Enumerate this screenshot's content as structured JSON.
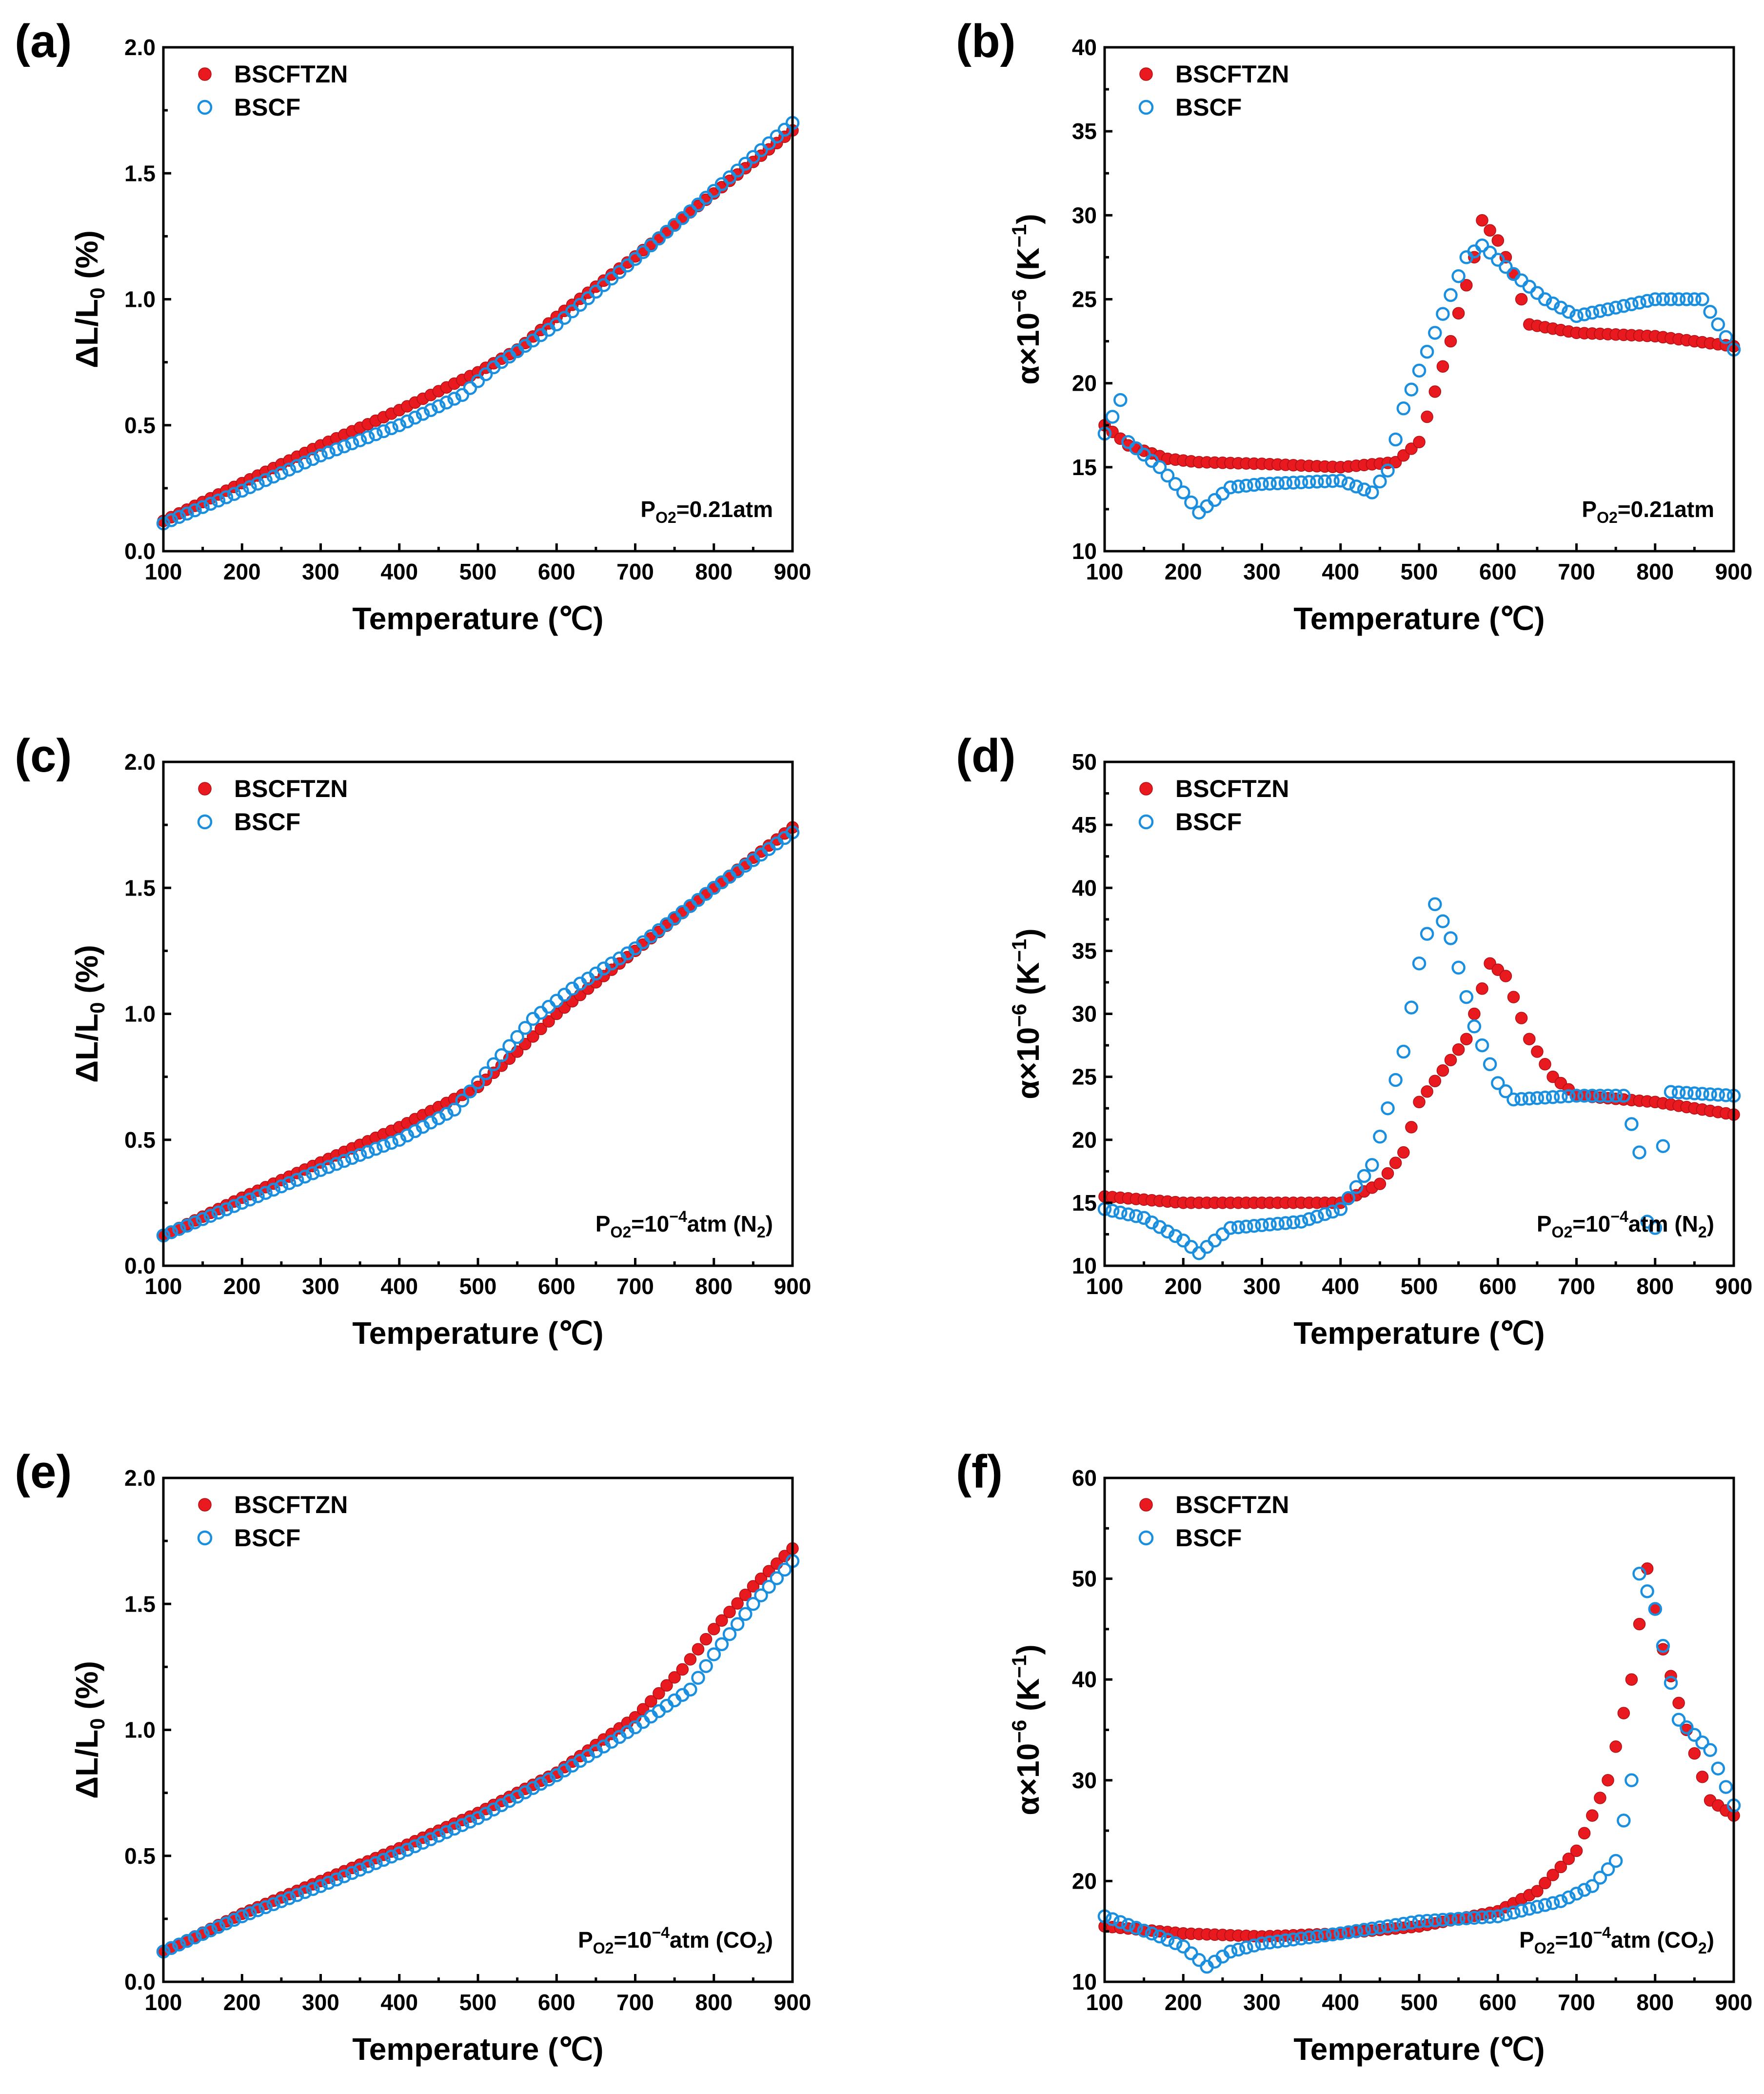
{
  "colors": {
    "bscftzn": "#e8191f",
    "bscf": "#1a8fe0",
    "axis": "#000000"
  },
  "chart_data": [
    {
      "type": "scatter",
      "panel": "(a)",
      "xlabel": "Temperature (℃)",
      "ylabel": "ΔL/L0 (%)",
      "ylabel_parts": {
        "main": "ΔL/L",
        "sub": "0",
        "tail": " (%)"
      },
      "xlim": [
        100,
        900
      ],
      "ylim": [
        0.0,
        2.0
      ],
      "xticks": [
        "100",
        "200",
        "300",
        "400",
        "500",
        "600",
        "700",
        "800",
        "900"
      ],
      "yticks": [
        "0.0",
        "0.5",
        "1.0",
        "1.5",
        "2.0"
      ],
      "legend": [
        "BSCFTZN",
        "BSCF"
      ],
      "annotation": {
        "pre": "P",
        "sub": "O2",
        "post": "=0.21atm",
        "tail_sub": "",
        "tail": ""
      },
      "series": [
        {
          "name": "BSCFTZN",
          "style": "filled",
          "x_start": 100,
          "x_step": 10,
          "x_end": 900,
          "curve": [
            [
              100,
              0.12
            ],
            [
              200,
              0.27
            ],
            [
              300,
              0.42
            ],
            [
              400,
              0.56
            ],
            [
              500,
              0.71
            ],
            [
              550,
              0.8
            ],
            [
              600,
              0.93
            ],
            [
              700,
              1.17
            ],
            [
              800,
              1.42
            ],
            [
              900,
              1.67
            ]
          ]
        },
        {
          "name": "BSCF",
          "style": "open",
          "x_start": 100,
          "x_step": 10,
          "x_end": 900,
          "curve": [
            [
              100,
              0.11
            ],
            [
              200,
              0.24
            ],
            [
              300,
              0.38
            ],
            [
              400,
              0.5
            ],
            [
              480,
              0.62
            ],
            [
              520,
              0.73
            ],
            [
              600,
              0.9
            ],
            [
              700,
              1.16
            ],
            [
              800,
              1.43
            ],
            [
              900,
              1.7
            ]
          ]
        }
      ]
    },
    {
      "type": "scatter",
      "panel": "(b)",
      "xlabel": "Temperature (℃)",
      "ylabel": "α×10−6 (K−1)",
      "ylabel_parts": {
        "main": "α×10",
        "sup": "−6",
        "mid": " (K",
        "sup2": "−1",
        "tail": ")"
      },
      "xlim": [
        100,
        900
      ],
      "ylim": [
        10,
        40
      ],
      "xticks": [
        "100",
        "200",
        "300",
        "400",
        "500",
        "600",
        "700",
        "800",
        "900"
      ],
      "yticks": [
        "10",
        "15",
        "20",
        "25",
        "30",
        "35",
        "40"
      ],
      "legend": [
        "BSCFTZN",
        "BSCF"
      ],
      "annotation": {
        "pre": "P",
        "sub": "O2",
        "post": "=0.21atm",
        "tail_sub": "",
        "tail": ""
      },
      "series": [
        {
          "name": "BSCFTZN",
          "style": "filled",
          "x_start": 100,
          "x_step": 10,
          "x_end": 900,
          "curve": [
            [
              100,
              17.5
            ],
            [
              130,
              16.3
            ],
            [
              180,
              15.5
            ],
            [
              220,
              15.3
            ],
            [
              300,
              15.2
            ],
            [
              400,
              15.0
            ],
            [
              470,
              15.3
            ],
            [
              500,
              16.5
            ],
            [
              540,
              22.5
            ],
            [
              570,
              27.5
            ],
            [
              580,
              29.7
            ],
            [
              600,
              28.5
            ],
            [
              620,
              26.5
            ],
            [
              640,
              23.5
            ],
            [
              700,
              23.0
            ],
            [
              800,
              22.8
            ],
            [
              900,
              22.2
            ]
          ]
        },
        {
          "name": "BSCF",
          "style": "open",
          "x_start": 100,
          "x_step": 10,
          "x_end": 900,
          "curve": [
            [
              100,
              17.0
            ],
            [
              120,
              19.0
            ],
            [
              130,
              16.5
            ],
            [
              170,
              15.0
            ],
            [
              200,
              13.5
            ],
            [
              220,
              12.3
            ],
            [
              260,
              13.8
            ],
            [
              300,
              14.0
            ],
            [
              400,
              14.2
            ],
            [
              440,
              13.5
            ],
            [
              460,
              14.8
            ],
            [
              480,
              18.5
            ],
            [
              520,
              23.0
            ],
            [
              560,
              27.5
            ],
            [
              580,
              28.2
            ],
            [
              620,
              26.5
            ],
            [
              660,
              25.0
            ],
            [
              700,
              24.0
            ],
            [
              800,
              25.0
            ],
            [
              860,
              25.0
            ],
            [
              900,
              22.0
            ]
          ]
        }
      ]
    },
    {
      "type": "scatter",
      "panel": "(c)",
      "xlabel": "Temperature (℃)",
      "ylabel": "ΔL/L0 (%)",
      "ylabel_parts": {
        "main": "ΔL/L",
        "sub": "0",
        "tail": " (%)"
      },
      "xlim": [
        100,
        900
      ],
      "ylim": [
        0.0,
        2.0
      ],
      "xticks": [
        "100",
        "200",
        "300",
        "400",
        "500",
        "600",
        "700",
        "800",
        "900"
      ],
      "yticks": [
        "0.0",
        "0.5",
        "1.0",
        "1.5",
        "2.0"
      ],
      "legend": [
        "BSCFTZN",
        "BSCF"
      ],
      "annotation": {
        "pre": "P",
        "sub": "O2",
        "post": "=10",
        "post_sup": "−4",
        "tail_text": "atm (N",
        "tail_sub": "2",
        "tail": ")"
      },
      "series": [
        {
          "name": "BSCFTZN",
          "style": "filled",
          "x_start": 100,
          "x_step": 10,
          "x_end": 900,
          "curve": [
            [
              100,
              0.12
            ],
            [
              200,
              0.27
            ],
            [
              300,
              0.41
            ],
            [
              400,
              0.55
            ],
            [
              500,
              0.71
            ],
            [
              550,
              0.85
            ],
            [
              600,
              1.0
            ],
            [
              700,
              1.25
            ],
            [
              800,
              1.5
            ],
            [
              900,
              1.74
            ]
          ]
        },
        {
          "name": "BSCF",
          "style": "open",
          "x_start": 100,
          "x_step": 10,
          "x_end": 900,
          "curve": [
            [
              100,
              0.12
            ],
            [
              200,
              0.25
            ],
            [
              300,
              0.38
            ],
            [
              400,
              0.5
            ],
            [
              470,
              0.62
            ],
            [
              520,
              0.8
            ],
            [
              570,
              0.98
            ],
            [
              620,
              1.1
            ],
            [
              700,
              1.26
            ],
            [
              800,
              1.5
            ],
            [
              900,
              1.72
            ]
          ]
        }
      ]
    },
    {
      "type": "scatter",
      "panel": "(d)",
      "xlabel": "Temperature (℃)",
      "ylabel": "α×10−6 (K−1)",
      "ylabel_parts": {
        "main": "α×10",
        "sup": "−6",
        "mid": " (K",
        "sup2": "−1",
        "tail": ")"
      },
      "xlim": [
        100,
        900
      ],
      "ylim": [
        10,
        50
      ],
      "xticks": [
        "100",
        "200",
        "300",
        "400",
        "500",
        "600",
        "700",
        "800",
        "900"
      ],
      "yticks": [
        "10",
        "15",
        "20",
        "25",
        "30",
        "35",
        "40",
        "45",
        "50"
      ],
      "legend": [
        "BSCFTZN",
        "BSCF"
      ],
      "annotation": {
        "pre": "P",
        "sub": "O2",
        "post": "=10",
        "post_sup": "−4",
        "tail_text": "atm (N",
        "tail_sub": "2",
        "tail": ")"
      },
      "series": [
        {
          "name": "BSCFTZN",
          "style": "filled",
          "x_start": 100,
          "x_step": 10,
          "x_end": 900,
          "curve": [
            [
              100,
              15.5
            ],
            [
              200,
              15.0
            ],
            [
              300,
              15.0
            ],
            [
              400,
              15.0
            ],
            [
              450,
              16.5
            ],
            [
              480,
              19.0
            ],
            [
              500,
              23.0
            ],
            [
              530,
              25.5
            ],
            [
              560,
              28.0
            ],
            [
              590,
              34.0
            ],
            [
              610,
              33.0
            ],
            [
              640,
              28.0
            ],
            [
              670,
              25.0
            ],
            [
              700,
              23.5
            ],
            [
              800,
              23.0
            ],
            [
              900,
              22.0
            ]
          ]
        },
        {
          "name": "BSCF",
          "style": "open",
          "x_start": 100,
          "x_step": 10,
          "x_end": 900,
          "curve": [
            [
              100,
              14.5
            ],
            [
              150,
              13.8
            ],
            [
              200,
              12.0
            ],
            [
              220,
              11.0
            ],
            [
              260,
              13.0
            ],
            [
              350,
              13.5
            ],
            [
              400,
              14.5
            ],
            [
              440,
              18.0
            ],
            [
              480,
              27.0
            ],
            [
              500,
              34.0
            ],
            [
              520,
              38.7
            ],
            [
              540,
              36.0
            ],
            [
              570,
              29.0
            ],
            [
              600,
              24.5
            ],
            [
              620,
              23.2
            ],
            [
              700,
              23.5
            ],
            [
              760,
              23.5
            ],
            [
              780,
              19.0
            ],
            [
              790,
              13.5
            ],
            [
              800,
              13.0
            ],
            [
              810,
              19.5
            ],
            [
              820,
              23.8
            ],
            [
              900,
              23.5
            ]
          ]
        }
      ]
    },
    {
      "type": "scatter",
      "panel": "(e)",
      "xlabel": "Temperature (℃)",
      "ylabel": "ΔL/L0 (%)",
      "ylabel_parts": {
        "main": "ΔL/L",
        "sub": "0",
        "tail": " (%)"
      },
      "xlim": [
        100,
        900
      ],
      "ylim": [
        0.0,
        2.0
      ],
      "xticks": [
        "100",
        "200",
        "300",
        "400",
        "500",
        "600",
        "700",
        "800",
        "900"
      ],
      "yticks": [
        "0.0",
        "0.5",
        "1.0",
        "1.5",
        "2.0"
      ],
      "legend": [
        "BSCFTZN",
        "BSCF"
      ],
      "annotation": {
        "pre": "P",
        "sub": "O2",
        "post": "=10",
        "post_sup": "−4",
        "tail_text": "atm (CO",
        "tail_sub": "2",
        "tail": ")"
      },
      "series": [
        {
          "name": "BSCFTZN",
          "style": "filled",
          "x_start": 100,
          "x_step": 10,
          "x_end": 900,
          "curve": [
            [
              100,
              0.12
            ],
            [
              200,
              0.27
            ],
            [
              300,
              0.4
            ],
            [
              400,
              0.53
            ],
            [
              500,
              0.67
            ],
            [
              600,
              0.83
            ],
            [
              700,
              1.05
            ],
            [
              760,
              1.24
            ],
            [
              800,
              1.4
            ],
            [
              850,
              1.57
            ],
            [
              900,
              1.72
            ]
          ]
        },
        {
          "name": "BSCF",
          "style": "open",
          "x_start": 100,
          "x_step": 10,
          "x_end": 900,
          "curve": [
            [
              100,
              0.12
            ],
            [
              200,
              0.26
            ],
            [
              300,
              0.38
            ],
            [
              400,
              0.51
            ],
            [
              500,
              0.65
            ],
            [
              600,
              0.82
            ],
            [
              700,
              1.01
            ],
            [
              770,
              1.16
            ],
            [
              800,
              1.3
            ],
            [
              850,
              1.5
            ],
            [
              900,
              1.67
            ]
          ]
        }
      ]
    },
    {
      "type": "scatter",
      "panel": "(f)",
      "xlabel": "Temperature (℃)",
      "ylabel": "α×10−6 (K−1)",
      "ylabel_parts": {
        "main": "α×10",
        "sup": "−6",
        "mid": " (K",
        "sup2": "−1",
        "tail": ")"
      },
      "xlim": [
        100,
        900
      ],
      "ylim": [
        10,
        60
      ],
      "xticks": [
        "100",
        "200",
        "300",
        "400",
        "500",
        "600",
        "700",
        "800",
        "900"
      ],
      "yticks": [
        "10",
        "20",
        "30",
        "40",
        "50",
        "60"
      ],
      "legend": [
        "BSCFTZN",
        "BSCF"
      ],
      "annotation": {
        "pre": "P",
        "sub": "O2",
        "post": "=10",
        "post_sup": "−4",
        "tail_text": "atm (CO",
        "tail_sub": "2",
        "tail": ")"
      },
      "series": [
        {
          "name": "BSCFTZN",
          "style": "filled",
          "x_start": 100,
          "x_step": 10,
          "x_end": 900,
          "curve": [
            [
              100,
              15.5
            ],
            [
              200,
              14.8
            ],
            [
              300,
              14.5
            ],
            [
              400,
              14.8
            ],
            [
              500,
              15.5
            ],
            [
              600,
              17.0
            ],
            [
              650,
              19.0
            ],
            [
              700,
              23.0
            ],
            [
              740,
              30.0
            ],
            [
              770,
              40.0
            ],
            [
              790,
              51.0
            ],
            [
              810,
              43.0
            ],
            [
              840,
              35.0
            ],
            [
              870,
              28.0
            ],
            [
              900,
              26.5
            ]
          ]
        },
        {
          "name": "BSCF",
          "style": "open",
          "x_start": 100,
          "x_step": 10,
          "x_end": 900,
          "curve": [
            [
              100,
              16.5
            ],
            [
              170,
              14.5
            ],
            [
              200,
              13.5
            ],
            [
              230,
              11.5
            ],
            [
              260,
              13.0
            ],
            [
              300,
              13.8
            ],
            [
              400,
              14.8
            ],
            [
              500,
              16.0
            ],
            [
              600,
              16.5
            ],
            [
              680,
              18.0
            ],
            [
              720,
              19.5
            ],
            [
              750,
              22.0
            ],
            [
              770,
              30.0
            ],
            [
              780,
              50.5
            ],
            [
              800,
              47.0
            ],
            [
              830,
              36.0
            ],
            [
              870,
              33.0
            ],
            [
              900,
              27.5
            ]
          ]
        }
      ]
    }
  ]
}
